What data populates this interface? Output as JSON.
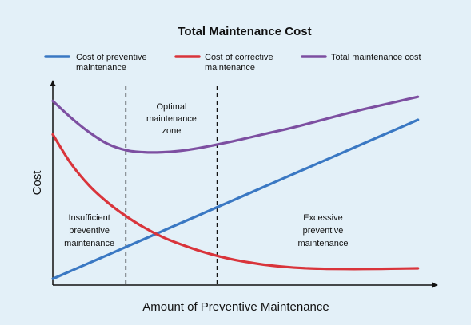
{
  "chart_data": {
    "type": "line",
    "title": "Total Maintenance Cost",
    "xlabel": "Amount of Preventive Maintenance",
    "ylabel": "Cost",
    "x_ticks_shown": false,
    "y_ticks_shown": false,
    "grid": false,
    "legend_position": "top",
    "x": [
      0,
      0.5,
      1,
      1.5,
      2,
      2.5,
      3,
      3.5,
      4,
      4.5,
      5,
      5.5,
      6,
      6.5,
      7,
      7.5,
      8,
      8.5,
      9,
      9.5,
      10
    ],
    "series": [
      {
        "name": "Cost of preventive maintenance",
        "color": "#3a78c3",
        "values": [
          0.3,
          0.68,
          1.06,
          1.44,
          1.82,
          2.2,
          2.58,
          2.96,
          3.34,
          3.72,
          4.1,
          4.48,
          4.86,
          5.24,
          5.62,
          6.0,
          6.38,
          6.76,
          7.14,
          7.52,
          7.9
        ]
      },
      {
        "name": "Cost of corrective maintenance",
        "color": "#d9343b",
        "values": [
          7.2,
          5.8,
          4.75,
          3.95,
          3.3,
          2.75,
          2.3,
          1.95,
          1.65,
          1.4,
          1.2,
          1.05,
          0.93,
          0.85,
          0.8,
          0.78,
          0.77,
          0.77,
          0.78,
          0.79,
          0.8
        ]
      },
      {
        "name": "Total maintenance cost",
        "color": "#7d4fa1",
        "values": [
          8.8,
          8.0,
          7.3,
          6.75,
          6.45,
          6.35,
          6.35,
          6.42,
          6.55,
          6.72,
          6.9,
          7.1,
          7.3,
          7.5,
          7.72,
          7.95,
          8.18,
          8.4,
          8.6,
          8.8,
          9.0
        ]
      }
    ],
    "zones": [
      {
        "x_start": 2.0,
        "x_end": 4.5,
        "label_lines": [
          "Optimal",
          "maintenance",
          "zone"
        ]
      }
    ],
    "annotations": [
      {
        "x": 1.0,
        "y": 3.1,
        "lines": [
          "Insufficient",
          "preventive",
          "maintenance"
        ]
      },
      {
        "x": 7.4,
        "y": 3.1,
        "lines": [
          "Excessive",
          "preventive",
          "maintenance"
        ]
      }
    ],
    "xlim": [
      0,
      10.4
    ],
    "ylim": [
      0,
      10
    ]
  }
}
